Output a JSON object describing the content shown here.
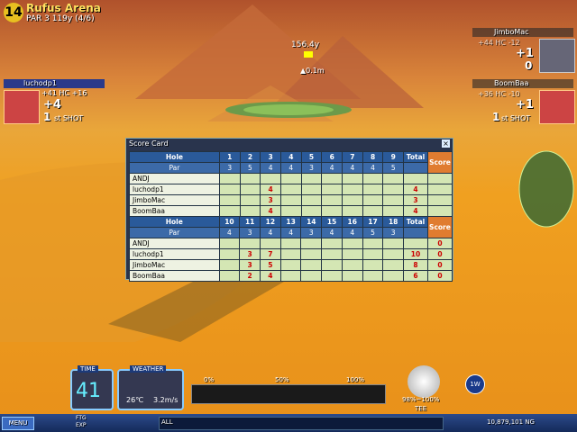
{
  "hole_info": {
    "number": "14",
    "course": "Rufus Arena",
    "par_line": "PAR 3 119y (4/6)"
  },
  "pin": {
    "distance": "156.4y",
    "height": "▲0.1m"
  },
  "players": [
    {
      "name": "luchodp1",
      "stats": "+41 HC +16",
      "score": "+4",
      "shot": "1",
      "shot_label": "st SHOT"
    },
    {
      "name": "JimboMac",
      "stats": "+44 HC -12",
      "score": "+1",
      "shot": "0"
    },
    {
      "name": "BoomBaa",
      "stats": "+36 HC -10",
      "score": "+1",
      "shot": "1",
      "shot_label": "st SHOT"
    }
  ],
  "scorecard": {
    "title": "Score Card",
    "hole_label": "Hole",
    "par_label": "Par",
    "total_label": "Total",
    "score_label": "Score",
    "halves": [
      {
        "holes": [
          "1",
          "2",
          "3",
          "4",
          "5",
          "6",
          "7",
          "8",
          "9"
        ],
        "par": [
          "3",
          "5",
          "4",
          "4",
          "3",
          "4",
          "4",
          "4",
          "5"
        ],
        "rows": [
          {
            "name": "ANDJ",
            "cells": [
              null,
              null,
              null,
              null,
              null,
              null,
              null,
              null,
              null
            ],
            "total": null,
            "score": null
          },
          {
            "name": "luchodp1",
            "cells": [
              null,
              null,
              "4",
              null,
              null,
              null,
              null,
              null,
              null
            ],
            "total": "4",
            "score": null
          },
          {
            "name": "JimboMac",
            "cells": [
              null,
              null,
              "3",
              null,
              null,
              null,
              null,
              null,
              null
            ],
            "total": "3",
            "score": null
          },
          {
            "name": "BoomBaa",
            "cells": [
              null,
              null,
              "4",
              null,
              null,
              null,
              null,
              null,
              null
            ],
            "total": "4",
            "score": null
          }
        ]
      },
      {
        "holes": [
          "10",
          "11",
          "12",
          "13",
          "14",
          "15",
          "16",
          "17",
          "18"
        ],
        "par": [
          "4",
          "3",
          "4",
          "4",
          "3",
          "4",
          "4",
          "5",
          "3"
        ],
        "rows": [
          {
            "name": "ANDJ",
            "cells": [
              null,
              null,
              null,
              null,
              null,
              null,
              null,
              null,
              null
            ],
            "total": null,
            "score": "0"
          },
          {
            "name": "luchodp1",
            "cells": [
              null,
              "3",
              "7",
              null,
              null,
              null,
              null,
              null,
              null
            ],
            "total": "10",
            "score": "0"
          },
          {
            "name": "JimboMac",
            "cells": [
              null,
              "3",
              "5",
              null,
              null,
              null,
              null,
              null,
              null
            ],
            "total": "8",
            "score": "0"
          },
          {
            "name": "BoomBaa",
            "cells": [
              null,
              "2",
              "4",
              null,
              null,
              null,
              null,
              null,
              null
            ],
            "total": "6",
            "score": "0"
          }
        ]
      }
    ]
  },
  "hud": {
    "time_label": "TIME",
    "time": "41",
    "weather_label": "WEATHER",
    "temperature": "26℃",
    "wind": "3.2m/s",
    "power_0": "0%",
    "power_50": "50%",
    "power_100": "100%",
    "impact": "98%~100%",
    "lie": "TEE",
    "club": "1W"
  },
  "taskbar": {
    "menu": "MENU",
    "ftg": "FTG",
    "exp": "EXP",
    "chat": "ALL",
    "money": "10,879,101 NG"
  }
}
